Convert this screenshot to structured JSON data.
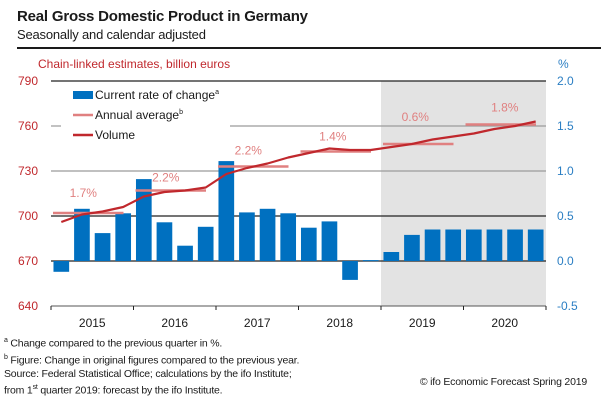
{
  "header": {
    "title": "Real Gross Domestic Product in Germany",
    "subtitle": "Seasonally and calendar adjusted"
  },
  "footnotes": {
    "note_a": "Change compared to the previous quarter in %.",
    "note_a_marker": "a",
    "note_b": "Figure: Change in original figures compared to the previous year.",
    "note_b_marker": "b",
    "source_line1": "Source: Federal Statistical Office; calculations by the ifo Institute;",
    "source_line2_pre": "from 1",
    "source_line2_sup": "st",
    "source_line2_post": " quarter 2019: forecast by the ifo Institute.",
    "copyright": "© ifo Economic Forecast Spring 2019"
  },
  "colors": {
    "bar": "#0070c0",
    "volume": "#c0282d",
    "annual": "#e08080",
    "left_axis": "#c0282d",
    "right_axis": "#2a7ec3",
    "forecast_shade": "#e3e3e3"
  },
  "chart_data": {
    "type": "bar",
    "title": "Real Gross Domestic Product in Germany",
    "subtitle": "Seasonally and calendar adjusted",
    "left_axis_label": "Chain-linked estimates, billion euros",
    "right_axis_label": "%",
    "left_ylim": [
      640,
      790
    ],
    "left_ticks": [
      "790",
      "760",
      "730",
      "700",
      "670",
      "640"
    ],
    "left_tick_values": [
      790,
      760,
      730,
      700,
      670,
      640
    ],
    "right_ylim": [
      -0.5,
      2.0
    ],
    "right_ticks": [
      "2.0",
      "1.5",
      "1.0",
      "0.5",
      "0.0",
      "-0.5"
    ],
    "right_tick_values": [
      2.0,
      1.5,
      1.0,
      0.5,
      0.0,
      -0.5
    ],
    "years": [
      "2015",
      "2016",
      "2017",
      "2018",
      "2019",
      "2020"
    ],
    "forecast_start": "2019Q1",
    "legend": {
      "position": "top-left",
      "entries": [
        {
          "label": "Current rate of change",
          "sup": "a",
          "kind": "bar"
        },
        {
          "label": "Annual average",
          "sup": "b",
          "kind": "annual"
        },
        {
          "label": "Volume",
          "sup": "",
          "kind": "volume"
        }
      ]
    },
    "quarters": [
      "2015Q1",
      "2015Q2",
      "2015Q3",
      "2015Q4",
      "2016Q1",
      "2016Q2",
      "2016Q3",
      "2016Q4",
      "2017Q1",
      "2017Q2",
      "2017Q3",
      "2017Q4",
      "2018Q1",
      "2018Q2",
      "2018Q3",
      "2018Q4",
      "2019Q1",
      "2019Q2",
      "2019Q3",
      "2019Q4",
      "2020Q1",
      "2020Q2",
      "2020Q3",
      "2020Q4"
    ],
    "series": [
      {
        "name": "Current rate of change",
        "axis": "right",
        "type": "bar",
        "values": [
          -0.12,
          0.58,
          0.31,
          0.53,
          0.91,
          0.43,
          0.17,
          0.38,
          1.11,
          0.54,
          0.58,
          0.53,
          0.37,
          0.44,
          -0.21,
          0.01,
          0.1,
          0.29,
          0.35,
          0.35,
          0.35,
          0.35,
          0.35,
          0.35
        ]
      },
      {
        "name": "Volume",
        "axis": "left",
        "type": "line",
        "values": [
          696,
          701,
          703,
          706,
          713,
          716,
          717,
          719,
          728,
          732,
          735,
          739,
          742,
          745,
          744,
          744,
          746,
          748,
          751,
          753,
          755,
          758,
          760,
          763
        ]
      },
      {
        "name": "Annual average",
        "axis": "left",
        "type": "segments",
        "values": [
          702,
          717,
          733,
          743,
          748,
          761
        ],
        "labels": [
          "1.7%",
          "2.2%",
          "2.2%",
          "1.4%",
          "0.6%",
          "1.8%"
        ]
      }
    ]
  }
}
